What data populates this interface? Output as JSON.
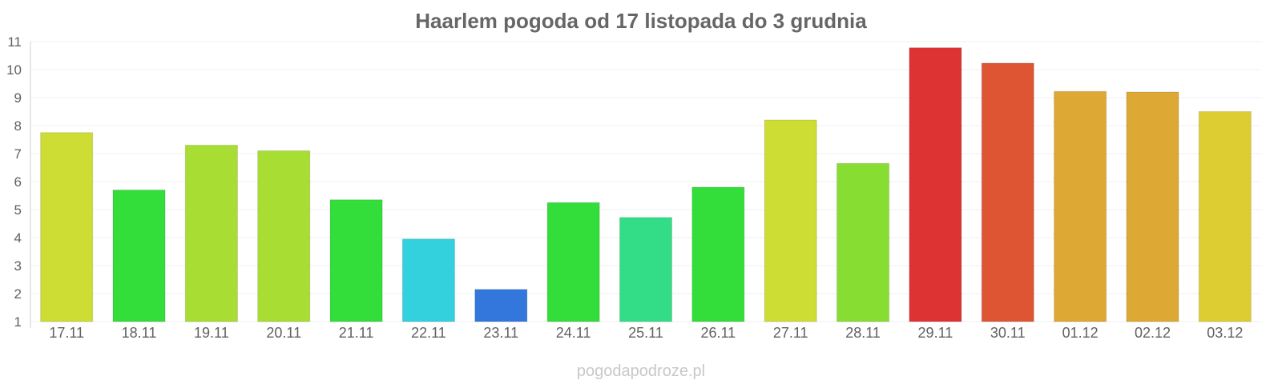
{
  "chart_data": {
    "type": "bar",
    "title": "Haarlem pogoda od 17 listopada do 3 grudnia",
    "xlabel": "",
    "ylabel": "",
    "ylim": [
      1,
      11
    ],
    "yticks": [
      1,
      2,
      3,
      4,
      5,
      6,
      7,
      8,
      9,
      10,
      11
    ],
    "grid": true,
    "categories": [
      "17.11",
      "18.11",
      "19.11",
      "20.11",
      "21.11",
      "22.11",
      "23.11",
      "24.11",
      "25.11",
      "26.11",
      "27.11",
      "28.11",
      "29.11",
      "30.11",
      "01.12",
      "02.12",
      "03.12"
    ],
    "values": [
      7.75,
      5.7,
      7.3,
      7.1,
      5.35,
      3.95,
      2.15,
      5.25,
      4.72,
      5.8,
      8.2,
      6.65,
      10.78,
      10.23,
      9.22,
      9.2,
      8.5
    ],
    "colors": [
      "#cddd33",
      "#33dd3a",
      "#a8dd33",
      "#a8dd33",
      "#33dd3a",
      "#33d0dd",
      "#3377dd",
      "#33dd3a",
      "#33dd88",
      "#33dd3a",
      "#cddd33",
      "#88dd33",
      "#dd3333",
      "#dd5533",
      "#dda833",
      "#dda833",
      "#ddcd33"
    ]
  },
  "watermark": "pogodapodroze.pl"
}
